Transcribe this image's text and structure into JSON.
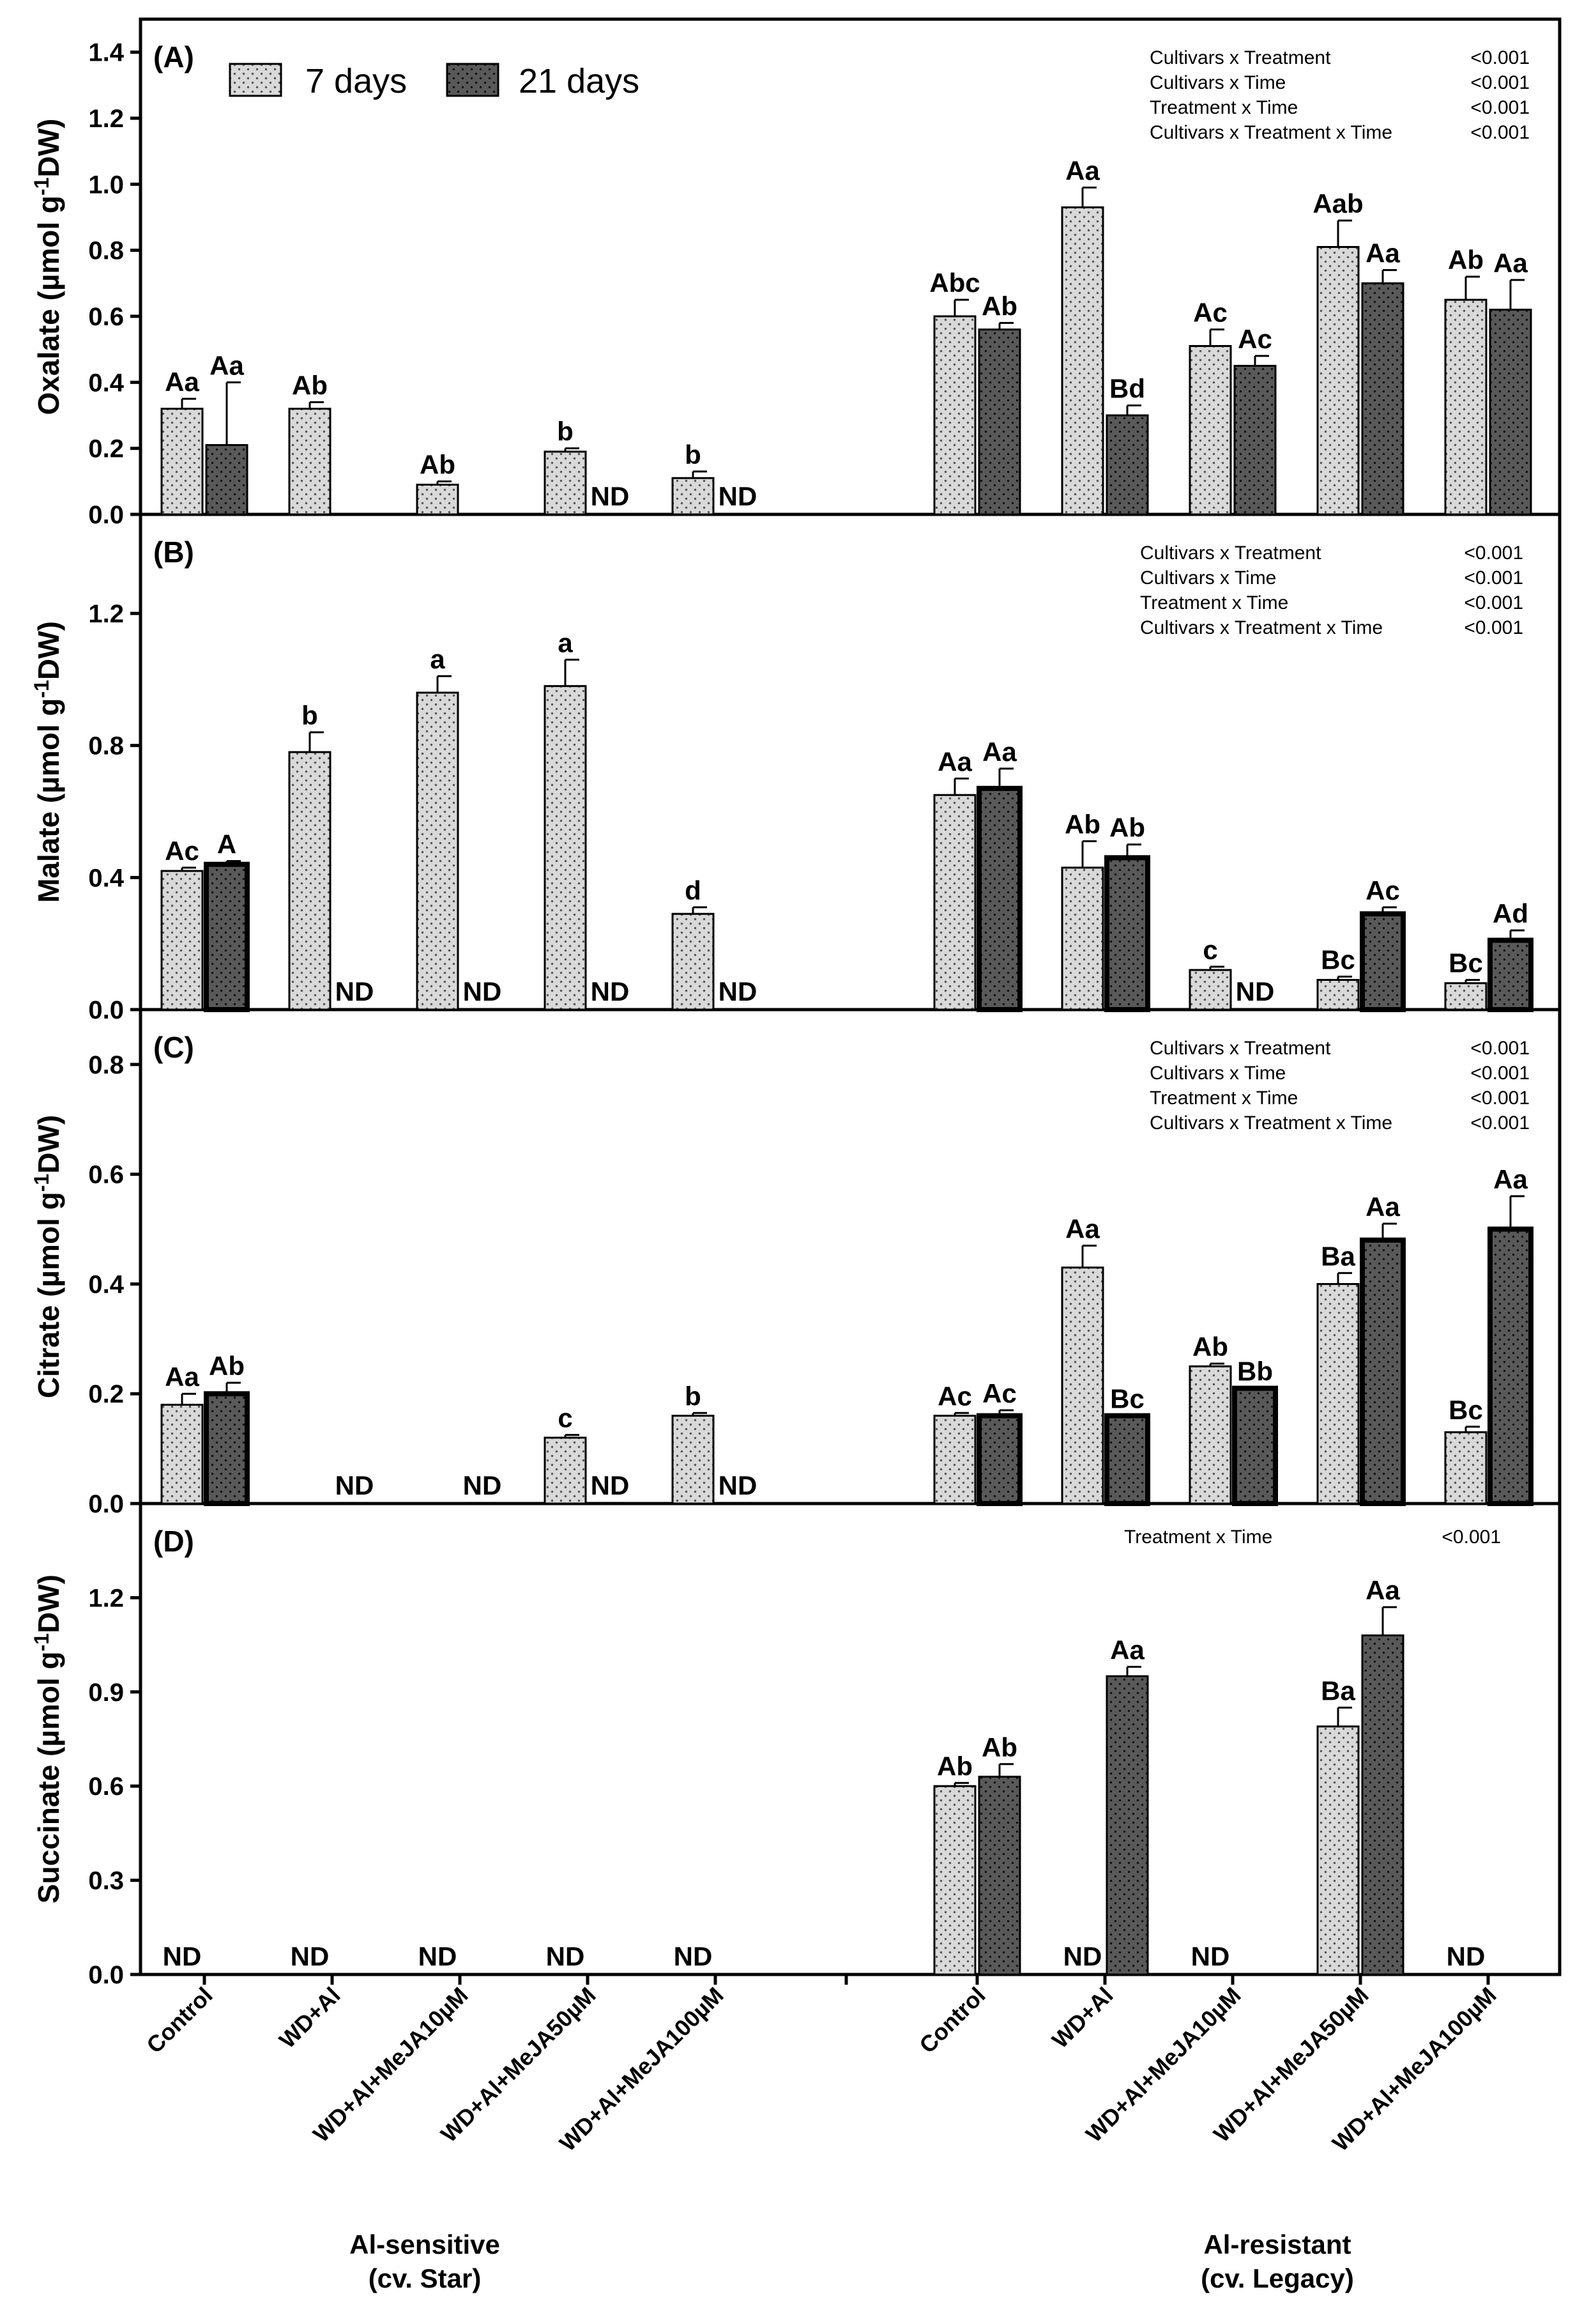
{
  "legend": {
    "items": [
      {
        "label": "7 days",
        "pattern": "light"
      },
      {
        "label": "21 days",
        "pattern": "dark"
      }
    ]
  },
  "colors": {
    "light_fill": "#d9d9d9",
    "dark_fill": "#595959",
    "axis": "#000000",
    "background": "#ffffff"
  },
  "x_axis": {
    "groups": [
      {
        "label_line1": "Al-sensitive",
        "label_line2": "(cv. Star)"
      },
      {
        "label_line1": "Al-resistant",
        "label_line2": "(cv. Legacy)"
      }
    ],
    "categories": [
      "Control",
      "WD+Al",
      "WD+Al+MeJA10µM",
      "WD+Al+MeJA50µM",
      "WD+Al+MeJA100µM"
    ]
  },
  "chart_data": [
    {
      "type": "bar",
      "panel": "(A)",
      "ylabel": "Oxalate (µmol g-1DW)",
      "ylabel_main": "Oxalate (µmol g",
      "ylabel_sup": "-1",
      "ylabel_end": "DW)",
      "ylim": [
        0,
        1.5
      ],
      "yticks": [
        0.0,
        0.2,
        0.4,
        0.6,
        0.8,
        1.0,
        1.2,
        1.4
      ],
      "tick_decimals": 1,
      "stats_row": 0,
      "stats": [
        {
          "term": "Cultivars x Treatment",
          "p": "<0.001"
        },
        {
          "term": "Cultivars x Time",
          "p": "<0.001"
        },
        {
          "term": "Treatment x Time",
          "p": "<0.001"
        },
        {
          "term": "Cultivars x Treatment x Time",
          "p": "<0.001"
        }
      ],
      "bars": [
        {
          "cultivar": "Al-sensitive (cv. Star)",
          "treatment": "Control",
          "d7": {
            "v": 0.32,
            "err": 0.03,
            "label": "Aa"
          },
          "d21": {
            "v": 0.21,
            "err": 0.19,
            "label": "Aa"
          }
        },
        {
          "cultivar": "Al-sensitive (cv. Star)",
          "treatment": "WD+Al",
          "d7": {
            "v": 0.32,
            "err": 0.02,
            "label": "Ab"
          },
          "d21": null
        },
        {
          "cultivar": "Al-sensitive (cv. Star)",
          "treatment": "WD+Al+MeJA10µM",
          "d7": {
            "v": 0.09,
            "err": 0.01,
            "label": "Ab"
          },
          "d21": null
        },
        {
          "cultivar": "Al-sensitive (cv. Star)",
          "treatment": "WD+Al+MeJA50µM",
          "d7": {
            "v": 0.19,
            "err": 0.01,
            "label": "b"
          },
          "d21": {
            "nd": "ND"
          }
        },
        {
          "cultivar": "Al-sensitive (cv. Star)",
          "treatment": "WD+Al+MeJA100µM",
          "d7": {
            "v": 0.11,
            "err": 0.02,
            "label": "b"
          },
          "d21": {
            "nd": "ND"
          }
        },
        {
          "cultivar": "Al-resistant (cv. Legacy)",
          "treatment": "Control",
          "d7": {
            "v": 0.6,
            "err": 0.05,
            "label": "Abc"
          },
          "d21": {
            "v": 0.56,
            "err": 0.02,
            "label": "Ab"
          }
        },
        {
          "cultivar": "Al-resistant (cv. Legacy)",
          "treatment": "WD+Al",
          "d7": {
            "v": 0.93,
            "err": 0.06,
            "label": "Aa"
          },
          "d21": {
            "v": 0.3,
            "err": 0.03,
            "label": "Bd"
          }
        },
        {
          "cultivar": "Al-resistant (cv. Legacy)",
          "treatment": "WD+Al+MeJA10µM",
          "d7": {
            "v": 0.51,
            "err": 0.05,
            "label": "Ac"
          },
          "d21": {
            "v": 0.45,
            "err": 0.03,
            "label": "Ac"
          }
        },
        {
          "cultivar": "Al-resistant (cv. Legacy)",
          "treatment": "WD+Al+MeJA50µM",
          "d7": {
            "v": 0.81,
            "err": 0.08,
            "label": "Aab"
          },
          "d21": {
            "v": 0.7,
            "err": 0.04,
            "label": "Aa"
          }
        },
        {
          "cultivar": "Al-resistant (cv. Legacy)",
          "treatment": "WD+Al+MeJA100µM",
          "d7": {
            "v": 0.65,
            "err": 0.07,
            "label": "Ab"
          },
          "d21": {
            "v": 0.62,
            "err": 0.09,
            "label": "Aa"
          }
        }
      ]
    },
    {
      "type": "bar",
      "panel": "(B)",
      "ylabel": "Malate (µmol g-1DW)",
      "ylabel_main": "Malate (µmol g",
      "ylabel_sup": "-1",
      "ylabel_end": "DW)",
      "ylim": [
        0,
        1.5
      ],
      "yticks": [
        0.0,
        0.4,
        0.8,
        1.2
      ],
      "tick_decimals": 1,
      "stats_row": 0,
      "stats": [
        {
          "term": "Cultivars x Treatment",
          "p": "<0.001"
        },
        {
          "term": "Cultivars x Time",
          "p": "<0.001"
        },
        {
          "term": "Treatment x Time",
          "p": "<0.001"
        },
        {
          "term": "Cultivars x Treatment x Time",
          "p": "<0.001"
        }
      ],
      "bars": [
        {
          "cultivar": "Al-sensitive (cv. Star)",
          "treatment": "Control",
          "d7": {
            "v": 0.42,
            "err": 0.01,
            "label": "Ac"
          },
          "d21": {
            "v": 0.44,
            "err": 0.01,
            "label": "A",
            "bold": true
          }
        },
        {
          "cultivar": "Al-sensitive (cv. Star)",
          "treatment": "WD+Al",
          "d7": {
            "v": 0.78,
            "err": 0.06,
            "label": "b"
          },
          "d21": {
            "nd": "ND"
          }
        },
        {
          "cultivar": "Al-sensitive (cv. Star)",
          "treatment": "WD+Al+MeJA10µM",
          "d7": {
            "v": 0.96,
            "err": 0.05,
            "label": "a"
          },
          "d21": {
            "nd": "ND"
          }
        },
        {
          "cultivar": "Al-sensitive (cv. Star)",
          "treatment": "WD+Al+MeJA50µM",
          "d7": {
            "v": 0.98,
            "err": 0.08,
            "label": "a"
          },
          "d21": {
            "nd": "ND"
          }
        },
        {
          "cultivar": "Al-sensitive (cv. Star)",
          "treatment": "WD+Al+MeJA100µM",
          "d7": {
            "v": 0.29,
            "err": 0.02,
            "label": "d"
          },
          "d21": {
            "nd": "ND"
          }
        },
        {
          "cultivar": "Al-resistant (cv. Legacy)",
          "treatment": "Control",
          "d7": {
            "v": 0.65,
            "err": 0.05,
            "label": "Aa"
          },
          "d21": {
            "v": 0.67,
            "err": 0.06,
            "label": "Aa",
            "bold": true
          }
        },
        {
          "cultivar": "Al-resistant (cv. Legacy)",
          "treatment": "WD+Al",
          "d7": {
            "v": 0.43,
            "err": 0.08,
            "label": "Ab"
          },
          "d21": {
            "v": 0.46,
            "err": 0.04,
            "label": "Ab",
            "bold": true
          }
        },
        {
          "cultivar": "Al-resistant (cv. Legacy)",
          "treatment": "WD+Al+MeJA10µM",
          "d7": {
            "v": 0.12,
            "err": 0.01,
            "label": "c"
          },
          "d21": {
            "nd": "ND"
          }
        },
        {
          "cultivar": "Al-resistant (cv. Legacy)",
          "treatment": "WD+Al+MeJA50µM",
          "d7": {
            "v": 0.09,
            "err": 0.01,
            "label": "Bc"
          },
          "d21": {
            "v": 0.29,
            "err": 0.02,
            "label": "Ac",
            "bold": true
          }
        },
        {
          "cultivar": "Al-resistant (cv. Legacy)",
          "treatment": "WD+Al+MeJA100µM",
          "d7": {
            "v": 0.08,
            "err": 0.01,
            "label": "Bc"
          },
          "d21": {
            "v": 0.21,
            "err": 0.03,
            "label": "Ad",
            "bold": true
          }
        }
      ]
    },
    {
      "type": "bar",
      "panel": "(C)",
      "ylabel": "Citrate (µmol g-1DW)",
      "ylabel_main": "Citrate (µmol g",
      "ylabel_sup": "-1",
      "ylabel_end": "DW)",
      "ylim": [
        0,
        0.9
      ],
      "yticks": [
        0.0,
        0.2,
        0.4,
        0.6,
        0.8
      ],
      "tick_decimals": 1,
      "stats_row": 0,
      "stats": [
        {
          "term": "Cultivars x Treatment",
          "p": "<0.001"
        },
        {
          "term": "Cultivars x Time",
          "p": "<0.001"
        },
        {
          "term": "Treatment x Time",
          "p": "<0.001"
        },
        {
          "term": "Cultivars x Treatment x Time",
          "p": "<0.001"
        }
      ],
      "bars": [
        {
          "cultivar": "Al-sensitive (cv. Star)",
          "treatment": "Control",
          "d7": {
            "v": 0.18,
            "err": 0.02,
            "label": "Aa"
          },
          "d21": {
            "v": 0.2,
            "err": 0.02,
            "label": "Ab",
            "bold": true
          }
        },
        {
          "cultivar": "Al-sensitive (cv. Star)",
          "treatment": "WD+Al",
          "d7": null,
          "d21": {
            "nd": "ND"
          }
        },
        {
          "cultivar": "Al-sensitive (cv. Star)",
          "treatment": "WD+Al+MeJA10µM",
          "d7": null,
          "d21": {
            "nd": "ND"
          }
        },
        {
          "cultivar": "Al-sensitive (cv. Star)",
          "treatment": "WD+Al+MeJA50µM",
          "d7": {
            "v": 0.12,
            "err": 0.005,
            "label": "c"
          },
          "d21": {
            "nd": "ND"
          }
        },
        {
          "cultivar": "Al-sensitive (cv. Star)",
          "treatment": "WD+Al+MeJA100µM",
          "d7": {
            "v": 0.16,
            "err": 0.005,
            "label": "b"
          },
          "d21": {
            "nd": "ND"
          }
        },
        {
          "cultivar": "Al-resistant (cv. Legacy)",
          "treatment": "Control",
          "d7": {
            "v": 0.16,
            "err": 0.005,
            "label": "Ac"
          },
          "d21": {
            "v": 0.16,
            "err": 0.01,
            "label": "Ac",
            "bold": true
          }
        },
        {
          "cultivar": "Al-resistant (cv. Legacy)",
          "treatment": "WD+Al",
          "d7": {
            "v": 0.43,
            "err": 0.04,
            "label": "Aa"
          },
          "d21": {
            "v": 0.16,
            "err": 0.0,
            "label": "Bc",
            "bold": true
          }
        },
        {
          "cultivar": "Al-resistant (cv. Legacy)",
          "treatment": "WD+Al+MeJA10µM",
          "d7": {
            "v": 0.25,
            "err": 0.005,
            "label": "Ab"
          },
          "d21": {
            "v": 0.21,
            "err": 0.0,
            "label": "Bb",
            "bold": true
          }
        },
        {
          "cultivar": "Al-resistant (cv. Legacy)",
          "treatment": "WD+Al+MeJA50µM",
          "d7": {
            "v": 0.4,
            "err": 0.02,
            "label": "Ba"
          },
          "d21": {
            "v": 0.48,
            "err": 0.03,
            "label": "Aa",
            "bold": true
          }
        },
        {
          "cultivar": "Al-resistant (cv. Legacy)",
          "treatment": "WD+Al+MeJA100µM",
          "d7": {
            "v": 0.13,
            "err": 0.01,
            "label": "Bc"
          },
          "d21": {
            "v": 0.5,
            "err": 0.06,
            "label": "Aa",
            "bold": true
          }
        }
      ]
    },
    {
      "type": "bar",
      "panel": "(D)",
      "ylabel": "Succinate (µmol g-1DW)",
      "ylabel_main": "Succinate (µmol g",
      "ylabel_sup": "-1",
      "ylabel_end": "DW)",
      "ylim": [
        0,
        1.5
      ],
      "yticks": [
        0.0,
        0.3,
        0.6,
        0.9,
        1.2
      ],
      "tick_decimals": 1,
      "stats_row": 1,
      "stats": [
        {
          "term": "Treatment x Time",
          "p": "<0.001"
        }
      ],
      "bars": [
        {
          "cultivar": "Al-sensitive (cv. Star)",
          "treatment": "Control",
          "d7": {
            "nd": "ND"
          },
          "d21": null
        },
        {
          "cultivar": "Al-sensitive (cv. Star)",
          "treatment": "WD+Al",
          "d7": {
            "nd": "ND"
          },
          "d21": null
        },
        {
          "cultivar": "Al-sensitive (cv. Star)",
          "treatment": "WD+Al+MeJA10µM",
          "d7": {
            "nd": "ND"
          },
          "d21": null
        },
        {
          "cultivar": "Al-sensitive (cv. Star)",
          "treatment": "WD+Al+MeJA50µM",
          "d7": {
            "nd": "ND"
          },
          "d21": null
        },
        {
          "cultivar": "Al-sensitive (cv. Star)",
          "treatment": "WD+Al+MeJA100µM",
          "d7": {
            "nd": "ND"
          },
          "d21": null
        },
        {
          "cultivar": "Al-resistant (cv. Legacy)",
          "treatment": "Control",
          "d7": {
            "v": 0.6,
            "err": 0.01,
            "label": "Ab"
          },
          "d21": {
            "v": 0.63,
            "err": 0.04,
            "label": "Ab"
          }
        },
        {
          "cultivar": "Al-resistant (cv. Legacy)",
          "treatment": "WD+Al",
          "d7": {
            "nd": "ND"
          },
          "d21": {
            "v": 0.95,
            "err": 0.03,
            "label": "Aa"
          }
        },
        {
          "cultivar": "Al-resistant (cv. Legacy)",
          "treatment": "WD+Al+MeJA10µM",
          "d7": {
            "nd": "ND"
          },
          "d21": null
        },
        {
          "cultivar": "Al-resistant (cv. Legacy)",
          "treatment": "WD+Al+MeJA50µM",
          "d7": {
            "v": 0.79,
            "err": 0.06,
            "label": "Ba"
          },
          "d21": {
            "v": 1.08,
            "err": 0.09,
            "label": "Aa"
          }
        },
        {
          "cultivar": "Al-resistant (cv. Legacy)",
          "treatment": "WD+Al+MeJA100µM",
          "d7": {
            "nd": "ND"
          },
          "d21": null
        }
      ]
    }
  ]
}
